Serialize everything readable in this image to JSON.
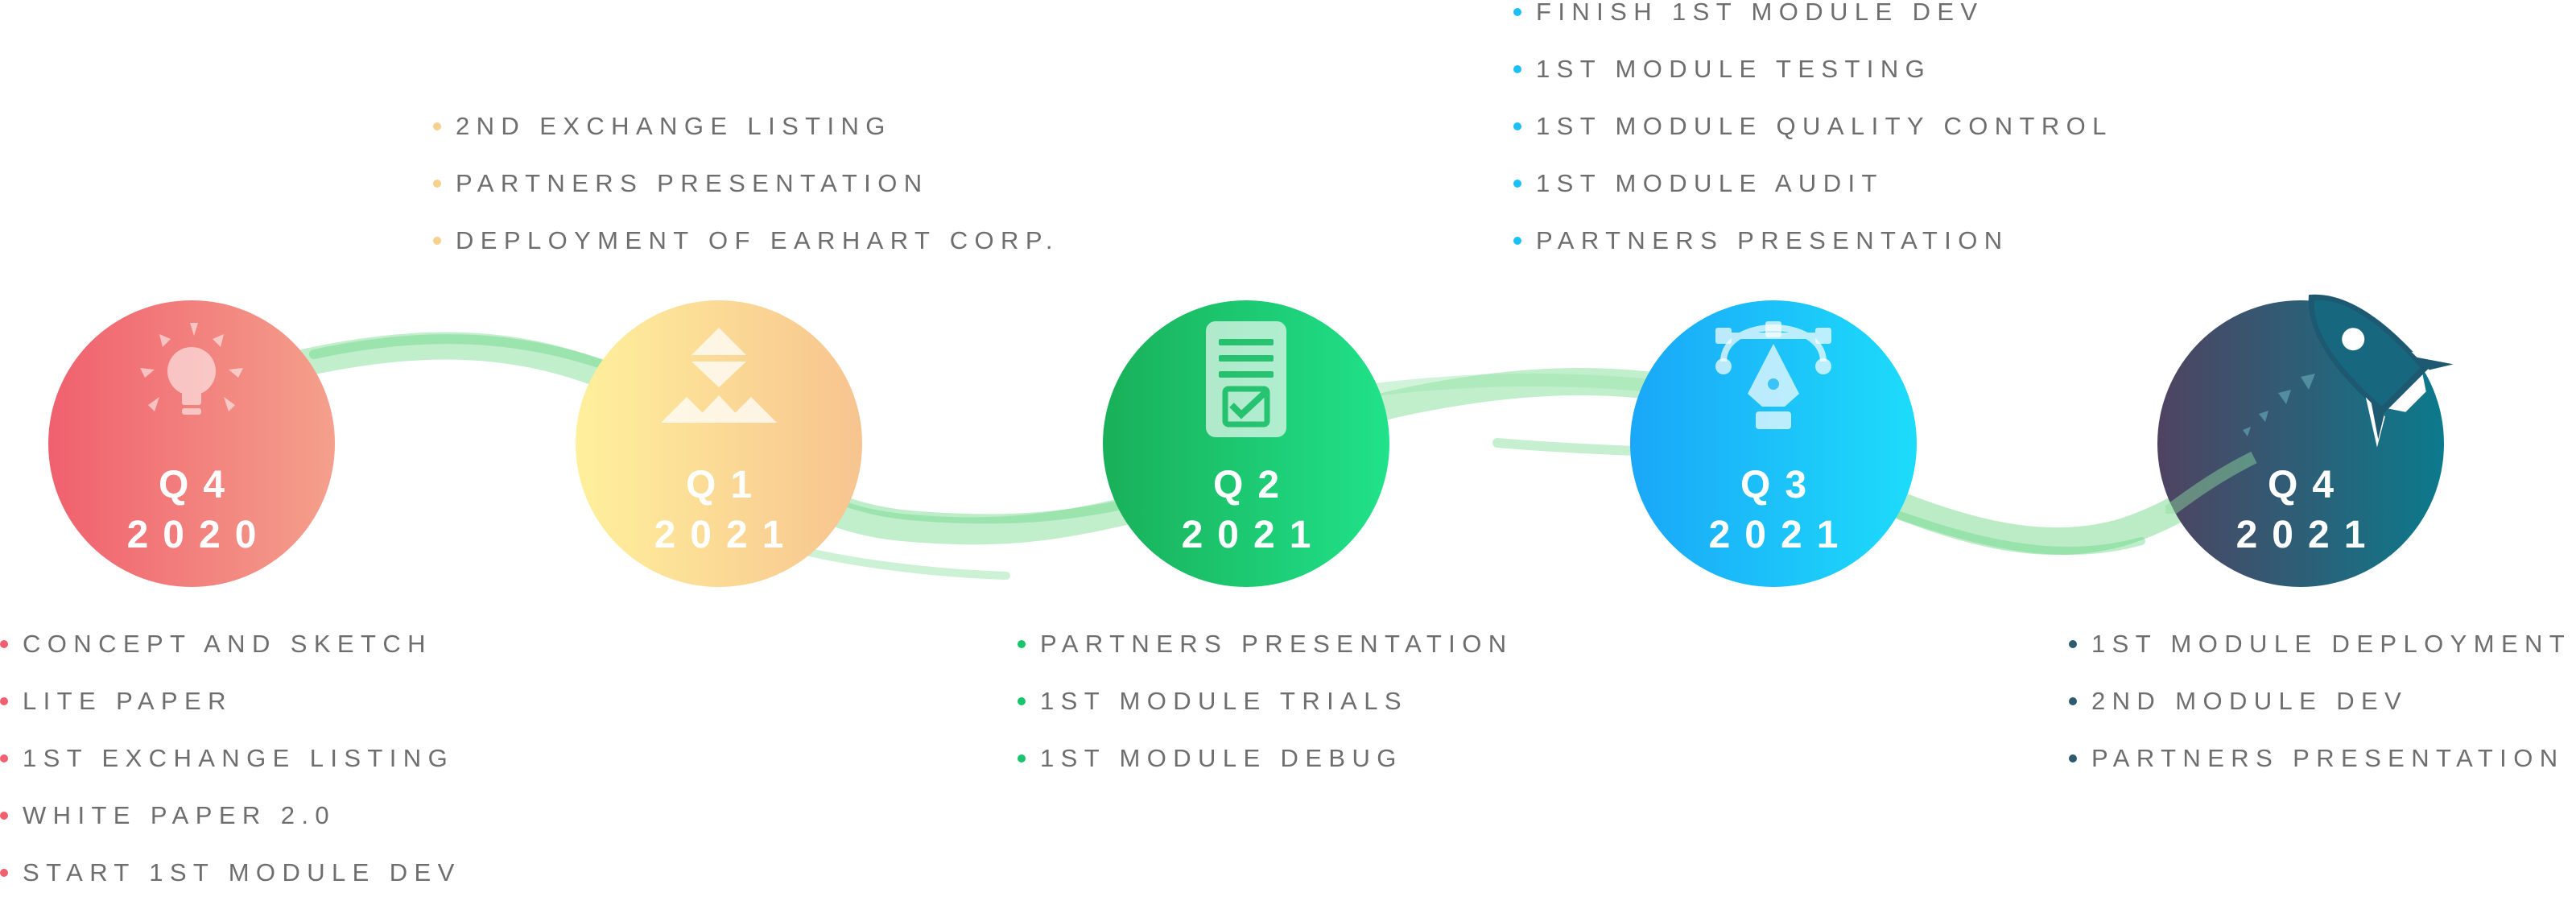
{
  "colors": {
    "q4_2020": "#f0606e",
    "q1_2021": "#f7cf8f",
    "q2_2021": "#19c46d",
    "q3_2021": "#1cc0f9",
    "q4_2021": "#2c5a6e",
    "stroke": "#7fdc93",
    "text": "#6e6e6e"
  },
  "milestones": [
    {
      "id": "q4-2020",
      "quarter": "Q4",
      "year": "2020",
      "icon": "lightbulb-icon",
      "tasks": [
        "CONCEPT AND SKETCH",
        "LITE PAPER",
        "1ST EXCHANGE LISTING",
        "WHITE PAPER 2.0",
        "START 1ST MODULE DEV"
      ]
    },
    {
      "id": "q1-2021",
      "quarter": "Q1",
      "year": "2021",
      "icon": "pyramid-icon",
      "tasks": [
        "2ND EXCHANGE LISTING",
        "PARTNERS PRESENTATION",
        "DEPLOYMENT OF EARHART CORP."
      ]
    },
    {
      "id": "q2-2021",
      "quarter": "Q2",
      "year": "2021",
      "icon": "document-check-icon",
      "tasks": [
        "PARTNERS PRESENTATION",
        "1ST MODULE TRIALS",
        "1ST MODULE DEBUG"
      ]
    },
    {
      "id": "q3-2021",
      "quarter": "Q3",
      "year": "2021",
      "icon": "pen-tool-icon",
      "tasks": [
        "FINISH 1ST MODULE DEV",
        "1ST MODULE TESTING",
        "1ST MODULE QUALITY CONTROL",
        "1ST MODULE AUDIT",
        "PARTNERS PRESENTATION"
      ]
    },
    {
      "id": "q4-2021",
      "quarter": "Q4",
      "year": "2021",
      "icon": "rocket-icon",
      "tasks": [
        "1ST MODULE DEPLOYMENT",
        "2ND MODULE DEV",
        "PARTNERS PRESENTATION"
      ]
    }
  ]
}
